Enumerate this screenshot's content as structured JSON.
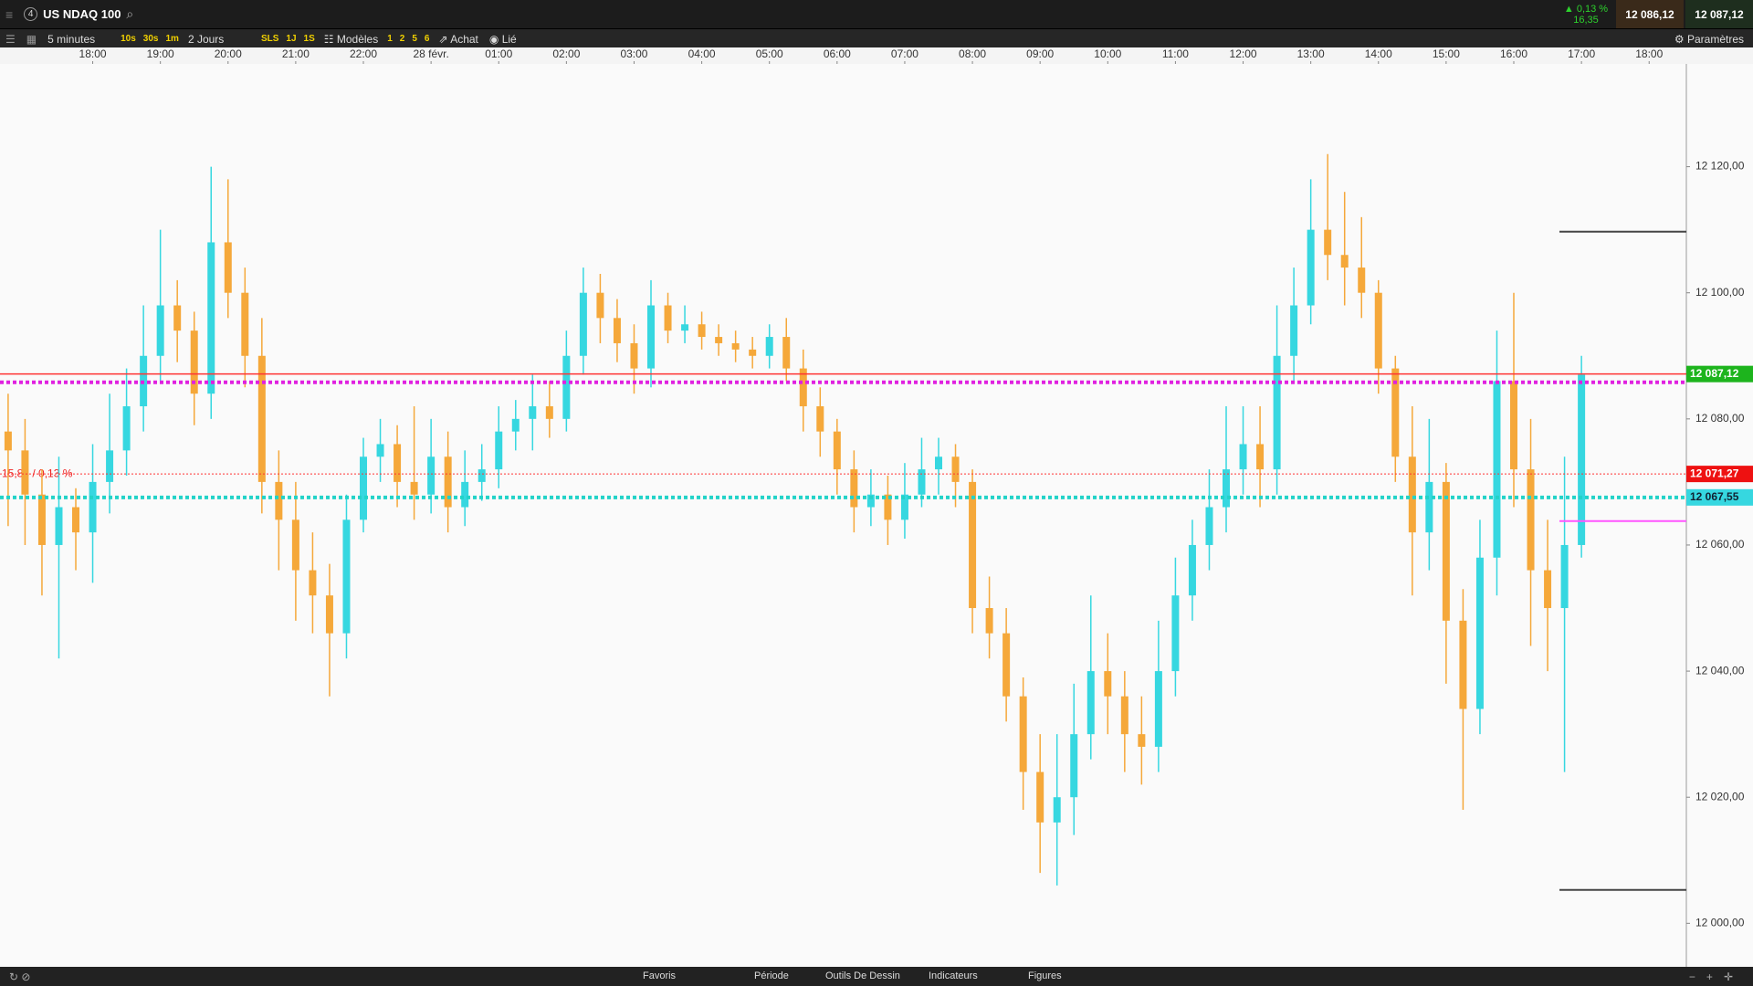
{
  "header": {
    "instrument_number": "4",
    "instrument": "US NDAQ 100",
    "change_pct": "▲ 0,13 %",
    "change_pts": "16,35",
    "bid": "12 086,12",
    "ask": "12 087,12"
  },
  "toolbar": {
    "interval": "5 minutes",
    "quick_intervals": [
      "10s",
      "30s",
      "1m"
    ],
    "range": "2 Jours",
    "quick_ranges": [
      "SLS",
      "1J",
      "1S"
    ],
    "templates": "Modèles",
    "template_slots": [
      "1",
      "2",
      "5",
      "6"
    ],
    "order": "Achat",
    "link": "Lié",
    "settings": "Paramètres"
  },
  "footer": {
    "tabs": [
      "Favoris",
      "Période",
      "Outils De Dessin",
      "Indicateurs",
      "Figures"
    ]
  },
  "chart_data": {
    "type": "candlestick",
    "up_color": "#36d7e0",
    "down_color": "#f5a83a",
    "x": [
      -1.25,
      -1,
      -0.75,
      -0.5,
      -0.25,
      0,
      0.25,
      0.5,
      0.75,
      1,
      1.25,
      1.5,
      1.75,
      2,
      2.25,
      2.5,
      2.75,
      3,
      3.25,
      3.5,
      3.75,
      4,
      4.25,
      4.5,
      4.75,
      5,
      5.25,
      5.5,
      5.75,
      6,
      6.25,
      6.5,
      6.75,
      7,
      7.25,
      7.5,
      7.75,
      8,
      8.25,
      8.5,
      8.75,
      9,
      9.25,
      9.5,
      9.75,
      10,
      10.25,
      10.5,
      10.75,
      11,
      11.25,
      11.5,
      11.75,
      12,
      12.25,
      12.5,
      12.75,
      13,
      13.25,
      13.5,
      13.75,
      14,
      14.25,
      14.5,
      14.75,
      15,
      15.25,
      15.5,
      15.75,
      16,
      16.25,
      16.5,
      16.75,
      17,
      17.25,
      17.5,
      17.75,
      18,
      18.25,
      18.5,
      18.75,
      19,
      19.25,
      19.5,
      19.75,
      20,
      20.25,
      20.5,
      20.75,
      21,
      21.25,
      21.5,
      21.75,
      22
    ],
    "open": [
      12078,
      12075,
      12068,
      12060,
      12066,
      12062,
      12070,
      12075,
      12082,
      12090,
      12098,
      12094,
      12084,
      12108,
      12100,
      12090,
      12070,
      12064,
      12056,
      12052,
      12046,
      12064,
      12074,
      12076,
      12070,
      12068,
      12074,
      12066,
      12070,
      12072,
      12078,
      12080,
      12082,
      12080,
      12090,
      12100,
      12096,
      12092,
      12088,
      12098,
      12094,
      12095,
      12093,
      12092,
      12091,
      12090,
      12093,
      12088,
      12082,
      12078,
      12072,
      12066,
      12068,
      12064,
      12068,
      12072,
      12074,
      12070,
      12050,
      12046,
      12036,
      12024,
      12016,
      12020,
      12030,
      12040,
      12036,
      12030,
      12028,
      12040,
      12052,
      12060,
      12066,
      12072,
      12076,
      12072,
      12090,
      12098,
      12110,
      12106,
      12104,
      12100,
      12088,
      12074,
      12062,
      12070,
      12048,
      12034,
      12058,
      12086,
      12072,
      12056,
      12050,
      12060
    ],
    "high": [
      12084,
      12080,
      12072,
      12074,
      12069,
      12076,
      12084,
      12088,
      12098,
      12110,
      12102,
      12097,
      12120,
      12118,
      12104,
      12096,
      12075,
      12070,
      12062,
      12057,
      12068,
      12077,
      12080,
      12079,
      12082,
      12080,
      12078,
      12075,
      12076,
      12082,
      12083,
      12087,
      12086,
      12094,
      12104,
      12103,
      12099,
      12095,
      12102,
      12100,
      12098,
      12097,
      12095,
      12094,
      12093,
      12095,
      12096,
      12091,
      12085,
      12080,
      12075,
      12072,
      12071,
      12073,
      12077,
      12077,
      12076,
      12072,
      12055,
      12050,
      12039,
      12030,
      12030,
      12038,
      12052,
      12046,
      12040,
      12036,
      12048,
      12058,
      12064,
      12072,
      12082,
      12082,
      12082,
      12098,
      12104,
      12118,
      12122,
      12116,
      12112,
      12102,
      12090,
      12082,
      12080,
      12073,
      12053,
      12064,
      12094,
      12100,
      12080,
      12064,
      12074,
      12090
    ],
    "low": [
      12063,
      12060,
      12052,
      12042,
      12056,
      12054,
      12065,
      12071,
      12078,
      12086,
      12089,
      12079,
      12080,
      12096,
      12085,
      12065,
      12056,
      12048,
      12046,
      12036,
      12042,
      12062,
      12070,
      12066,
      12064,
      12065,
      12062,
      12063,
      12067,
      12069,
      12075,
      12075,
      12077,
      12078,
      12087,
      12092,
      12089,
      12084,
      12085,
      12092,
      12092,
      12091,
      12090,
      12089,
      12088,
      12088,
      12086,
      12078,
      12074,
      12068,
      12062,
      12063,
      12060,
      12061,
      12066,
      12068,
      12066,
      12046,
      12042,
      12032,
      12018,
      12008,
      12006,
      12014,
      12026,
      12030,
      12024,
      12022,
      12024,
      12036,
      12048,
      12056,
      12062,
      12068,
      12066,
      12068,
      12086,
      12095,
      12102,
      12098,
      12096,
      12084,
      12070,
      12052,
      12056,
      12038,
      12018,
      12030,
      12052,
      12066,
      12044,
      12040,
      12024,
      12058
    ],
    "close": [
      12075,
      12068,
      12060,
      12066,
      12062,
      12070,
      12075,
      12082,
      12090,
      12098,
      12094,
      12084,
      12108,
      12100,
      12090,
      12070,
      12064,
      12056,
      12052,
      12046,
      12064,
      12074,
      12076,
      12070,
      12068,
      12074,
      12066,
      12070,
      12072,
      12078,
      12080,
      12082,
      12080,
      12090,
      12100,
      12096,
      12092,
      12088,
      12098,
      12094,
      12095,
      12093,
      12092,
      12091,
      12090,
      12093,
      12088,
      12082,
      12078,
      12072,
      12066,
      12068,
      12064,
      12068,
      12072,
      12074,
      12070,
      12050,
      12046,
      12036,
      12024,
      12016,
      12020,
      12030,
      12040,
      12036,
      12030,
      12028,
      12040,
      12052,
      12060,
      12066,
      12072,
      12076,
      12072,
      12090,
      12098,
      12110,
      12106,
      12104,
      12100,
      12088,
      12074,
      12062,
      12070,
      12048,
      12034,
      12058,
      12086,
      12072,
      12056,
      12050,
      12060,
      12087
    ],
    "xlim": [
      -1.37,
      23.55
    ],
    "xticks": [
      {
        "value": 0,
        "label": "18:00"
      },
      {
        "value": 1,
        "label": "19:00"
      },
      {
        "value": 2,
        "label": "20:00"
      },
      {
        "value": 3,
        "label": "21:00"
      },
      {
        "value": 4,
        "label": "22:00"
      },
      {
        "value": 5,
        "label": "28 févr."
      },
      {
        "value": 6,
        "label": "01:00"
      },
      {
        "value": 7,
        "label": "02:00"
      },
      {
        "value": 8,
        "label": "03:00"
      },
      {
        "value": 9,
        "label": "04:00"
      },
      {
        "value": 10,
        "label": "05:00"
      },
      {
        "value": 11,
        "label": "06:00"
      },
      {
        "value": 12,
        "label": "07:00"
      },
      {
        "value": 13,
        "label": "08:00"
      },
      {
        "value": 14,
        "label": "09:00"
      },
      {
        "value": 15,
        "label": "10:00"
      },
      {
        "value": 16,
        "label": "11:00"
      },
      {
        "value": 17,
        "label": "12:00"
      },
      {
        "value": 18,
        "label": "13:00"
      },
      {
        "value": 19,
        "label": "14:00"
      },
      {
        "value": 20,
        "label": "15:00"
      },
      {
        "value": 21,
        "label": "16:00"
      },
      {
        "value": 22,
        "label": "17:00"
      },
      {
        "value": 23,
        "label": "18:00"
      }
    ],
    "ylim": [
      11993.1,
      12136.3
    ],
    "yticks": [
      {
        "value": 12000,
        "label": "12 000,00"
      },
      {
        "value": 12020,
        "label": "12 020,00"
      },
      {
        "value": 12040,
        "label": "12 040,00"
      },
      {
        "value": 12060,
        "label": "12 060,00"
      },
      {
        "value": 12080,
        "label": "12 080,00"
      },
      {
        "value": 12100,
        "label": "12 100,00"
      },
      {
        "value": 12120,
        "label": "12 120,00"
      }
    ],
    "annotation": "15,85 / 0,13 %",
    "levels": [
      {
        "value": 12087.12,
        "label": "12 087,12",
        "color": "#ff3333",
        "label_color": "#1db41d",
        "style": "solid"
      },
      {
        "value": 12085.8,
        "color": "#e021e0",
        "style": "dotted"
      },
      {
        "value": 12071.27,
        "label": "12 071,27",
        "color": "#ff3333",
        "label_color": "#ee1111",
        "style": "fine"
      },
      {
        "value": 12067.55,
        "label": "12 067,55",
        "color": "#22d3c8",
        "label_color": "#36d7e0",
        "style": "dotted"
      },
      {
        "value": 12109.7,
        "color": "#444444",
        "style": "short"
      },
      {
        "value": 12063.8,
        "color": "#ff55ff",
        "style": "short"
      },
      {
        "value": 12005.3,
        "color": "#444444",
        "style": "short"
      }
    ]
  }
}
